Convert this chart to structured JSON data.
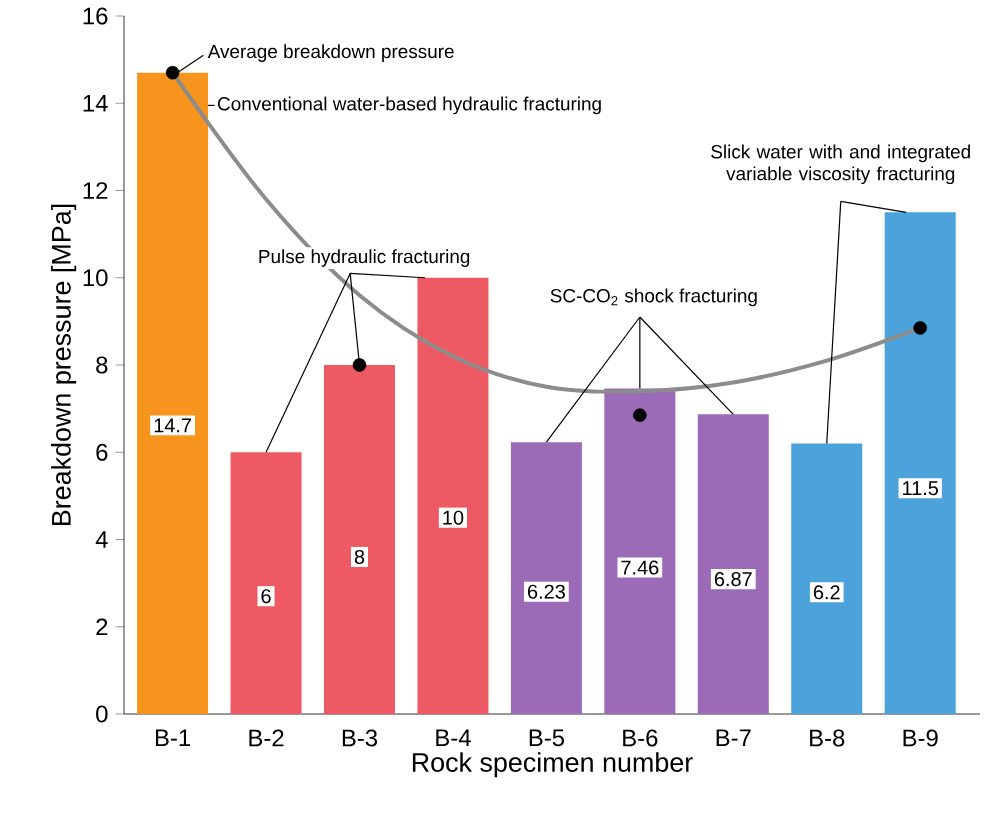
{
  "chart_data": {
    "type": "bar",
    "xlabel": "Rock specimen number",
    "ylabel": "Breakdown pressure [MPa]",
    "categories": [
      "B-1",
      "B-2",
      "B-3",
      "B-4",
      "B-5",
      "B-6",
      "B-7",
      "B-8",
      "B-9"
    ],
    "series": [
      {
        "colors": [
          "#f7941d",
          "#ee5a63",
          "#ee5a63",
          "#ee5a63",
          "#9b6bb8",
          "#9b6bb8",
          "#9b6bb8",
          "#4ca3dc",
          "#4ca3dc"
        ],
        "values": [
          14.7,
          6,
          8,
          10,
          6.23,
          7.46,
          6.87,
          6.2,
          11.5
        ],
        "data_labels": true
      },
      {
        "type": "line",
        "color": "#8c8c8c",
        "marker": "none",
        "line_style": "solid",
        "values": [
          14.7,
          11.8,
          9.6,
          8.2,
          7.5,
          7.4,
          7.6,
          8.1,
          8.85
        ]
      },
      {
        "type": "scatter",
        "color": "#000000",
        "marker": "circle",
        "values": [
          14.7,
          null,
          8,
          null,
          null,
          6.85,
          null,
          null,
          8.85
        ]
      }
    ],
    "ylim": [
      0,
      16
    ],
    "yticks": [
      0,
      2,
      4,
      6,
      8,
      10,
      12,
      14,
      16
    ],
    "grid": false,
    "annotations": [
      {
        "text": "Average breakdown pressure",
        "x": "B-1",
        "y": 14.7
      },
      "Conventional water-based hydraulic fracturing",
      {
        "text": "Pulse hydraulic fracturing",
        "x": "B-3",
        "y": 8
      },
      {
        "text": "SC-CO$_{2}$ shock fracturing",
        "x": "B-6",
        "y": 7.46
      },
      {
        "text": "Slick water with and integrated variable viscosity fracturing",
        "x": "B-9",
        "y": 11.5
      }
    ]
  }
}
